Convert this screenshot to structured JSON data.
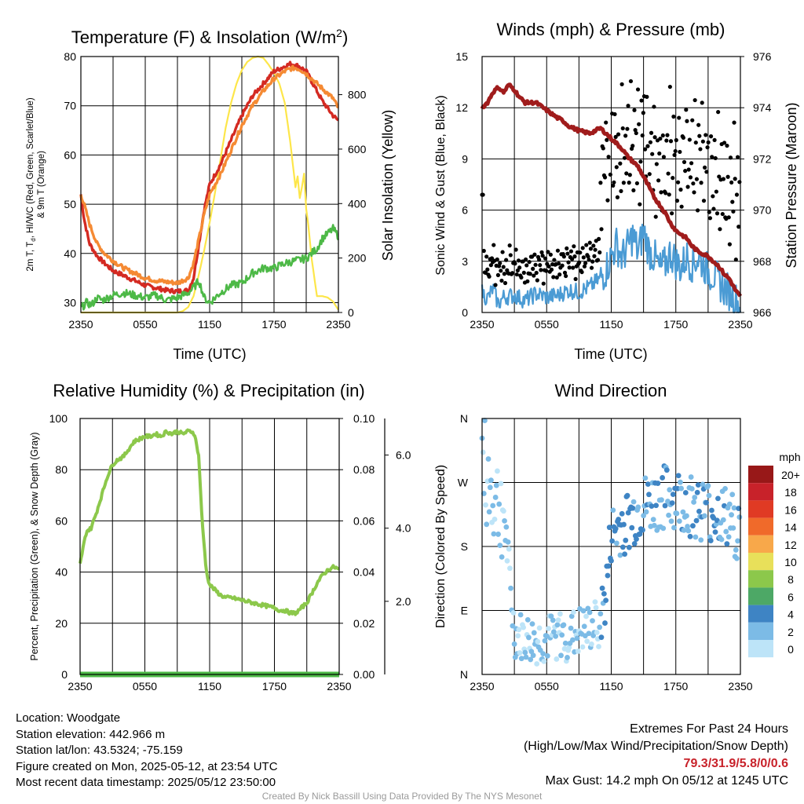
{
  "colors": {
    "temp": "#d42a22",
    "wetbulb": "#4db947",
    "temp9m": "#f58a33",
    "solar": "#fde64a",
    "wind": "#4b9bd4",
    "gust": "#000000",
    "pressure": "#a01c1c",
    "rh": "#8cc84b",
    "precip": "#4db947",
    "speed_scale": [
      "#bde4f8",
      "#7cbbe6",
      "#3e84c4",
      "#4da866",
      "#8cc84b",
      "#e8e05a",
      "#f8a84a",
      "#f06a2a",
      "#e03a24",
      "#c8222a",
      "#981818"
    ]
  },
  "chart_data": [
    {
      "type": "line",
      "title": "Temperature (F) & Insolation (W/m²)",
      "xlabel": "Time (UTC)",
      "ylabel": "2m T, Td, HI/WC (Red, Green, Scarlet/Blue) & 9m T (Orange)",
      "ylabel_line1": "2m T, T",
      "ylabel_sub": "d",
      "ylabel_line1b": ", HI/WC (Red, Green, Scarlet/Blue)",
      "ylabel_line2": "& 9m T (Orange)",
      "y2label": "Solar Insolation (Yellow)",
      "x_ticks": [
        "2350",
        "0550",
        "1150",
        "1750",
        "2350"
      ],
      "x_hours": [
        0,
        24
      ],
      "ylim": [
        28,
        80
      ],
      "y_ticks": [
        30,
        40,
        50,
        60,
        70,
        80
      ],
      "y2lim": [
        0,
        940
      ],
      "y2_ticks": [
        0,
        200,
        400,
        600,
        800
      ],
      "series": [
        {
          "key": "temp",
          "x": [
            0,
            0.3,
            0.8,
            1.5,
            2.2,
            3,
            4,
            5,
            6,
            7,
            8,
            9,
            10,
            10.5,
            11,
            11.5,
            12,
            12.5,
            13,
            14,
            15,
            16,
            17,
            18,
            19,
            19.5,
            20,
            20.5,
            21,
            21.5,
            22,
            22.5,
            23,
            23.5,
            24
          ],
          "y": [
            52,
            47,
            42,
            39.5,
            38,
            36.5,
            35.5,
            34.5,
            33.5,
            33,
            32.5,
            32.3,
            32.5,
            35,
            42,
            49,
            54,
            56,
            58,
            63,
            68,
            72,
            74.5,
            77,
            78,
            78.5,
            78.3,
            77.8,
            77,
            75,
            73,
            71,
            69.5,
            68,
            67
          ]
        },
        {
          "key": "temp9m",
          "x": [
            0,
            0.3,
            0.8,
            1.5,
            2.2,
            3,
            4,
            5,
            6,
            7,
            8,
            9,
            10,
            10.5,
            11,
            11.5,
            12,
            12.5,
            13,
            14,
            15,
            16,
            17,
            18,
            19,
            19.5,
            20,
            20.5,
            21,
            21.5,
            22,
            22.5,
            23,
            23.5,
            24
          ],
          "y": [
            52,
            50,
            46,
            42,
            40,
            38.5,
            37,
            36,
            35,
            34.5,
            34.2,
            34,
            35,
            38,
            43,
            48,
            52,
            54,
            56,
            61,
            66,
            70,
            73,
            75.5,
            77,
            77.5,
            77.7,
            77.3,
            76.5,
            75.5,
            74.5,
            73.5,
            72.5,
            71.5,
            69.5
          ]
        },
        {
          "key": "wetbulb",
          "x": [
            0,
            0.5,
            1,
            1.5,
            2,
            3,
            4,
            5,
            6,
            7,
            8,
            9,
            10,
            10.5,
            11,
            11.5,
            12,
            13,
            14,
            15,
            16,
            17,
            18,
            19,
            20,
            21,
            22,
            22.5,
            23,
            23.5,
            24
          ],
          "y": [
            28.8,
            30,
            29.5,
            31,
            30.5,
            31.5,
            32,
            31.5,
            31,
            31.5,
            30.5,
            31,
            32,
            33,
            34.5,
            31,
            30,
            32,
            33.5,
            34,
            36,
            37,
            37,
            38,
            38.5,
            39,
            41,
            43,
            44,
            45,
            43.5
          ]
        }
      ],
      "solar": {
        "x": [
          0,
          1,
          2,
          3,
          4,
          5,
          6,
          7,
          8,
          8.7,
          9,
          9.5,
          10,
          10.5,
          11,
          11.5,
          12,
          12.5,
          13,
          13.5,
          14,
          14.5,
          15,
          15.5,
          16,
          16.5,
          17,
          17.5,
          18,
          18.5,
          19,
          19.5,
          20,
          20.2,
          20.4,
          20.6,
          20.8,
          21,
          21.2,
          21.5,
          22,
          22.5,
          23,
          23.5,
          24
        ],
        "y": [
          0,
          0,
          0,
          0,
          0,
          0,
          0,
          0,
          0,
          0,
          0,
          5,
          20,
          60,
          140,
          230,
          330,
          440,
          560,
          680,
          770,
          840,
          890,
          920,
          935,
          940,
          935,
          910,
          880,
          840,
          770,
          630,
          460,
          500,
          420,
          460,
          510,
          380,
          320,
          200,
          60,
          60,
          55,
          40,
          10
        ]
      }
    },
    {
      "type": "line",
      "title": "Winds (mph) & Pressure (mb)",
      "xlabel": "Time (UTC)",
      "ylabel": "Sonic Wind & Gust (Blue, Black)",
      "y2label": "Station Pressure (Maroon)",
      "x_ticks": [
        "2350",
        "0550",
        "1150",
        "1750",
        "2350"
      ],
      "ylim": [
        0,
        15
      ],
      "y_ticks": [
        0,
        3,
        6,
        9,
        12,
        15
      ],
      "y2lim": [
        966,
        976
      ],
      "y2_ticks": [
        966,
        968,
        970,
        972,
        974,
        976
      ],
      "wind": {
        "x": [
          0,
          0.5,
          1,
          1.5,
          2,
          3,
          4,
          5,
          6,
          7,
          8,
          9,
          10,
          11,
          11.5,
          12,
          12.5,
          13,
          13.5,
          14,
          14.5,
          15,
          15.5,
          16,
          16.5,
          17,
          17.5,
          18,
          18.5,
          19,
          19.5,
          20,
          20.5,
          21,
          21.5,
          22,
          22.5,
          23,
          23.5,
          24
        ],
        "y": [
          1.2,
          0.8,
          1.4,
          0.5,
          0.9,
          1.0,
          0.7,
          1.1,
          0.9,
          1.0,
          1.3,
          1.2,
          1.5,
          2.0,
          2.5,
          3.3,
          4.0,
          3.2,
          3.8,
          4.5,
          3.5,
          4.8,
          3.6,
          3.3,
          2.5,
          2.8,
          3.5,
          3.0,
          2.6,
          3.3,
          2.8,
          3.2,
          2.9,
          2.4,
          2.2,
          1.8,
          1.4,
          1.2,
          0.8,
          0.2
        ]
      },
      "gust_seed": [
        1.3,
        1.8,
        2.2,
        1.1,
        0.9,
        2.4,
        1.6,
        1.2,
        0.8,
        2.0,
        1.7,
        1.5,
        1.1,
        2.6,
        1.9,
        0.7,
        1.4,
        2.1
      ],
      "pressure": {
        "x": [
          0,
          0.5,
          1,
          1.5,
          2,
          2.5,
          3,
          3.5,
          4,
          5,
          6,
          7,
          7.5,
          8,
          9,
          10,
          11,
          12,
          12.5,
          13,
          13.5,
          14,
          14.5,
          15,
          15.5,
          16,
          16.5,
          17,
          17.5,
          18,
          19,
          19.5,
          20,
          20.5,
          21,
          21.5,
          22,
          22.5,
          23,
          23.5,
          24
        ],
        "y": [
          974,
          974.2,
          974.6,
          974.8,
          974.6,
          974.9,
          974.7,
          974.4,
          974.2,
          974.2,
          973.9,
          973.6,
          973.5,
          973.3,
          973.1,
          973,
          973.2,
          972.8,
          972.6,
          972.4,
          972.1,
          971.9,
          971.7,
          971.3,
          970.9,
          970.5,
          970.2,
          969.9,
          969.5,
          969.2,
          968.9,
          968.6,
          968.4,
          968.3,
          968.2,
          968,
          967.8,
          967.5,
          967.3,
          966.9,
          966.6
        ]
      }
    },
    {
      "type": "line",
      "title": "Relative Humidity (%) & Precipitation (in)",
      "ylabel": "Percent, Precipitation (Green), & Snow Depth (Gray)",
      "x_ticks": [
        "2350",
        "0550",
        "1150",
        "1750",
        "2350"
      ],
      "ylim": [
        0,
        100
      ],
      "y_ticks": [
        0,
        20,
        40,
        60,
        80,
        100
      ],
      "y2lim": [
        0,
        0.1
      ],
      "y2_ticks": [
        "0.00",
        "0.02",
        "0.04",
        "0.06",
        "0.08",
        "0.10"
      ],
      "snow_ticks": [
        "2.0",
        "4.0",
        "6.0"
      ],
      "snow_ticks_value": [
        2,
        4,
        6
      ],
      "snow_lim": [
        0,
        7
      ],
      "rh": {
        "x": [
          0,
          0.3,
          0.6,
          1,
          1.5,
          2,
          2.5,
          3,
          3.5,
          4,
          4.5,
          5,
          5.5,
          6,
          6.5,
          7,
          7.5,
          8,
          8.5,
          9,
          9.5,
          10,
          10.3,
          10.6,
          11,
          11.3,
          11.7,
          12,
          12.5,
          13,
          13.5,
          14,
          15,
          16,
          17,
          18,
          18.5,
          19,
          19.5,
          20,
          20.5,
          21,
          21.5,
          22,
          22.5,
          23,
          23.5,
          24
        ],
        "y": [
          43,
          50,
          56,
          57,
          63,
          70,
          77,
          82,
          84,
          85,
          88,
          91,
          92,
          93,
          93,
          94,
          93,
          95,
          94,
          95,
          94,
          95,
          95,
          94,
          85,
          60,
          40,
          35,
          33,
          31,
          30,
          30,
          29,
          28,
          27,
          26,
          25,
          25,
          24,
          24,
          26,
          28,
          32,
          36,
          39,
          41,
          42,
          41
        ]
      },
      "precip_total": 0
    },
    {
      "type": "scatter",
      "title": "Wind Direction",
      "ylabel": "Direction (Colored By Speed)",
      "x_ticks": [
        "2350",
        "0550",
        "1150",
        "1750",
        "2350"
      ],
      "y_ticks": [
        "N",
        "E",
        "S",
        "W",
        "N"
      ],
      "ylim": [
        0,
        360
      ],
      "legend_title": "mph",
      "legend_labels": [
        "20+",
        "18",
        "16",
        "14",
        "12",
        "10",
        "8",
        "6",
        "4",
        "2",
        "0"
      ],
      "trend": {
        "x": [
          0,
          1,
          2,
          3,
          4,
          5,
          6,
          7,
          8,
          9,
          10,
          11,
          11.5,
          12,
          13,
          14,
          15,
          16,
          17,
          18,
          19,
          20,
          21,
          22,
          23,
          24
        ],
        "y": [
          300,
          250,
          230,
          55,
          50,
          45,
          48,
          55,
          52,
          60,
          62,
          75,
          110,
          195,
          210,
          220,
          235,
          240,
          250,
          245,
          240,
          235,
          230,
          225,
          215,
          200
        ]
      }
    }
  ],
  "footer": {
    "location": "Location: Woodgate",
    "elevation": "Station elevation: 442.966 m",
    "latlon": "Station lat/lon: 43.5324; -75.159",
    "created": "Figure created on Mon, 2025-05-12, at 23:54 UTC",
    "recent": "Most recent data timestamp: 2025/05/12 23:50:00",
    "extremes_title": "Extremes For Past 24 Hours",
    "extremes_sub": "(High/Low/Max Wind/Precipitation/Snow Depth)",
    "extremes_values": "79.3/31.9/5.8/0/0.6",
    "max_gust": "Max Gust: 14.2 mph On 05/12 at 1245 UTC",
    "credit": "Created By Nick Bassill Using Data Provided By The NYS Mesonet"
  }
}
